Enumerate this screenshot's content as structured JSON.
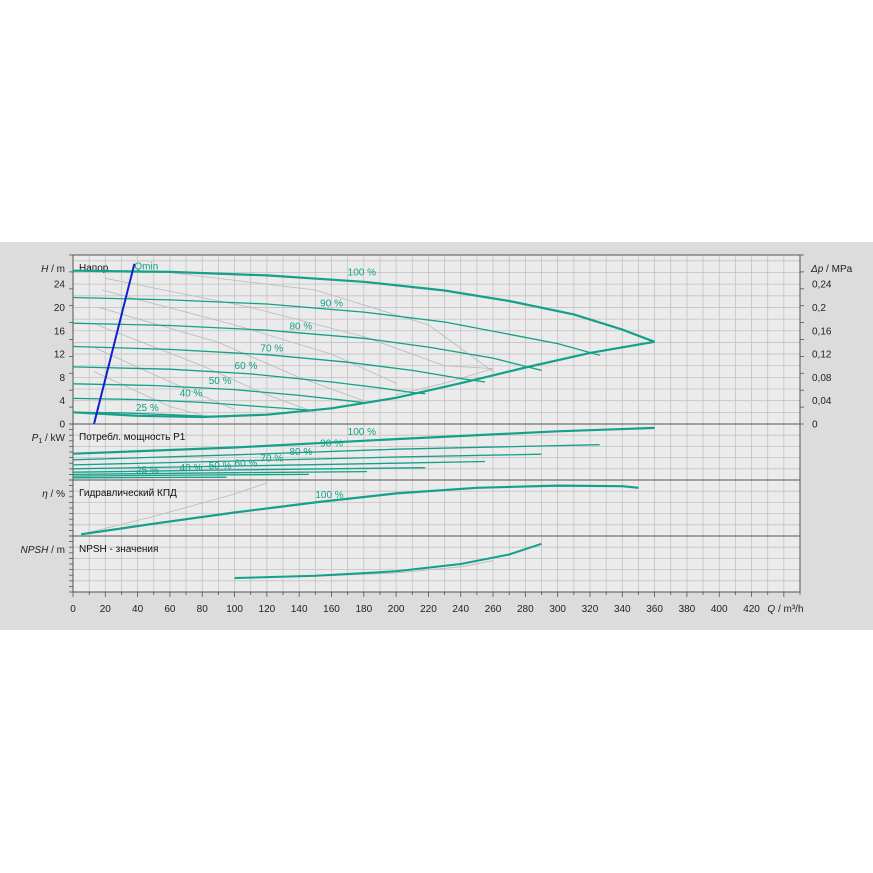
{
  "colors": {
    "panel_bg": "#dcdcdc",
    "plot_bg": "#ebebeb",
    "grid": "#c2c2c2",
    "curve": "#14a08a",
    "iso": "#b9b9b9",
    "qmin": "#1020d0",
    "text": "#222222"
  },
  "chart_data": {
    "type": "line",
    "x_axis": {
      "label_symbol": "Q",
      "label_unit": " / m³/h",
      "range": [
        0,
        450
      ],
      "ticks": [
        0,
        20,
        40,
        60,
        80,
        100,
        120,
        140,
        160,
        180,
        200,
        220,
        240,
        260,
        280,
        300,
        320,
        340,
        360,
        380,
        400,
        420
      ]
    },
    "panels": [
      {
        "id": "head",
        "title": "Напор",
        "ylabel_symbol": "H",
        "ylabel_unit": " / m",
        "y_range": [
          0,
          29
        ],
        "y_ticks": [
          {
            "v": 0,
            "t": "0"
          },
          {
            "v": 4,
            "t": "4"
          },
          {
            "v": 8,
            "t": "8"
          },
          {
            "v": 12,
            "t": "12"
          },
          {
            "v": 16,
            "t": "16"
          },
          {
            "v": 20,
            "t": "20"
          },
          {
            "v": 24,
            "t": "24"
          }
        ],
        "y2label_symbol": "Δp",
        "y2label_unit": " / MPa",
        "y2_ticks": [
          {
            "v": 0,
            "t": "0"
          },
          {
            "v": 4,
            "t": "0,04"
          },
          {
            "v": 8,
            "t": "0,08"
          },
          {
            "v": 12,
            "t": "0,12"
          },
          {
            "v": 16,
            "t": "0,16"
          },
          {
            "v": 20,
            "t": "0,2"
          },
          {
            "v": 24,
            "t": "0,24"
          }
        ],
        "series": [
          {
            "name": "100 %",
            "label_at": [
              170,
              25.5
            ],
            "points": [
              [
                0,
                26.3
              ],
              [
                60,
                26.1
              ],
              [
                120,
                25.5
              ],
              [
                180,
                24.4
              ],
              [
                230,
                22.9
              ],
              [
                270,
                21.1
              ],
              [
                310,
                18.8
              ],
              [
                340,
                16.2
              ],
              [
                360,
                14.1
              ]
            ]
          },
          {
            "name": "90 %",
            "label_at": [
              153,
              20.2
            ],
            "points": [
              [
                0,
                21.7
              ],
              [
                60,
                21.3
              ],
              [
                120,
                20.6
              ],
              [
                180,
                19.2
              ],
              [
                230,
                17.5
              ],
              [
                270,
                15.4
              ],
              [
                300,
                13.8
              ],
              [
                326,
                11.8
              ]
            ]
          },
          {
            "name": "80 %",
            "label_at": [
              134,
              16.2
            ],
            "points": [
              [
                0,
                17.3
              ],
              [
                60,
                16.9
              ],
              [
                120,
                16.1
              ],
              [
                180,
                14.7
              ],
              [
                220,
                13.2
              ],
              [
                260,
                11.3
              ],
              [
                290,
                9.2
              ]
            ]
          },
          {
            "name": "70 %",
            "label_at": [
              116,
              12.4
            ],
            "points": [
              [
                0,
                13.3
              ],
              [
                60,
                12.8
              ],
              [
                120,
                11.9
              ],
              [
                170,
                10.6
              ],
              [
                210,
                9.2
              ],
              [
                240,
                7.8
              ],
              [
                255,
                7.2
              ]
            ]
          },
          {
            "name": "60 %",
            "label_at": [
              100,
              9.4
            ],
            "points": [
              [
                0,
                9.8
              ],
              [
                60,
                9.4
              ],
              [
                110,
                8.6
              ],
              [
                160,
                7.2
              ],
              [
                190,
                6.2
              ],
              [
                210,
                5.4
              ],
              [
                218,
                5.2
              ]
            ]
          },
          {
            "name": "50 %",
            "label_at": [
              84,
              6.9
            ],
            "points": [
              [
                0,
                6.9
              ],
              [
                50,
                6.6
              ],
              [
                100,
                5.9
              ],
              [
                140,
                4.9
              ],
              [
                170,
                4.0
              ],
              [
                182,
                3.6
              ]
            ]
          },
          {
            "name": "40 %",
            "label_at": [
              66,
              4.7
            ],
            "points": [
              [
                0,
                4.4
              ],
              [
                40,
                4.2
              ],
              [
                80,
                3.7
              ],
              [
                110,
                3.1
              ],
              [
                140,
                2.5
              ],
              [
                146,
                2.4
              ]
            ]
          },
          {
            "name": "25 %",
            "label_at": [
              39,
              2.2
            ],
            "points": [
              [
                0,
                2.0
              ],
              [
                30,
                1.9
              ],
              [
                60,
                1.6
              ],
              [
                85,
                1.3
              ],
              [
                95,
                1.25
              ]
            ]
          }
        ],
        "envelope": [
          [
            0,
            2.0
          ],
          [
            40,
            1.4
          ],
          [
            80,
            1.2
          ],
          [
            120,
            1.6
          ],
          [
            160,
            2.7
          ],
          [
            200,
            4.5
          ],
          [
            240,
            7.0
          ],
          [
            280,
            9.7
          ],
          [
            320,
            12.2
          ],
          [
            360,
            14.1
          ]
        ],
        "iso_lines": [
          [
            [
              20,
              25
            ],
            [
              110,
              20
            ],
            [
              180,
              15
            ],
            [
              230,
              10
            ],
            [
              260,
              9.5
            ]
          ],
          [
            [
              18,
              23
            ],
            [
              100,
              17
            ],
            [
              160,
              12
            ],
            [
              200,
              7
            ]
          ],
          [
            [
              16,
              20
            ],
            [
              90,
              14
            ],
            [
              140,
              8
            ],
            [
              180,
              4
            ]
          ],
          [
            [
              15,
              17
            ],
            [
              80,
              10
            ],
            [
              120,
              5
            ],
            [
              150,
              2
            ]
          ],
          [
            [
              14,
              13
            ],
            [
              70,
              6
            ],
            [
              100,
              2.5
            ]
          ],
          [
            [
              13,
              9
            ],
            [
              60,
              3
            ],
            [
              80,
              1.5
            ]
          ],
          [
            [
              60,
              26
            ],
            [
              150,
              23
            ],
            [
              220,
              17
            ],
            [
              260,
              9
            ]
          ],
          [
            [
              200,
              5
            ],
            [
              230,
              7
            ],
            [
              260,
              9.5
            ]
          ]
        ],
        "qmin": {
          "name": "Qmin",
          "label_at": [
            38,
            26.5
          ],
          "points": [
            [
              13,
              0
            ],
            [
              38,
              27.5
            ]
          ]
        }
      },
      {
        "id": "power",
        "title": "Потребл. мощность P1",
        "ylabel_symbol": "P",
        "ylabel_sub": "1",
        "ylabel_unit": " / kW",
        "y_range": [
          0,
          1
        ],
        "y_ticks": [],
        "series": [
          {
            "name": "100 %",
            "label_at": [
              170,
              0.8
            ],
            "points": [
              [
                0,
                0.47
              ],
              [
                100,
                0.58
              ],
              [
                200,
                0.73
              ],
              [
                300,
                0.87
              ],
              [
                360,
                0.93
              ]
            ]
          },
          {
            "name": "90 %",
            "label_at": [
              153,
              0.6
            ],
            "points": [
              [
                0,
                0.36
              ],
              [
                100,
                0.45
              ],
              [
                200,
                0.55
              ],
              [
                326,
                0.63
              ]
            ]
          },
          {
            "name": "80 %",
            "label_at": [
              134,
              0.45
            ],
            "points": [
              [
                0,
                0.27
              ],
              [
                100,
                0.34
              ],
              [
                200,
                0.41
              ],
              [
                290,
                0.46
              ]
            ]
          },
          {
            "name": "70 %",
            "label_at": [
              116,
              0.33
            ],
            "points": [
              [
                0,
                0.2
              ],
              [
                100,
                0.25
              ],
              [
                200,
                0.3
              ],
              [
                255,
                0.33
              ]
            ]
          },
          {
            "name": "60 %",
            "label_at": [
              100,
              0.24
            ],
            "points": [
              [
                0,
                0.14
              ],
              [
                100,
                0.18
              ],
              [
                218,
                0.22
              ]
            ]
          },
          {
            "name": "50 %",
            "label_at": [
              84,
              0.2
            ],
            "points": [
              [
                0,
                0.1
              ],
              [
                100,
                0.13
              ],
              [
                182,
                0.15
              ]
            ]
          },
          {
            "name": "40 %",
            "label_at": [
              66,
              0.16
            ],
            "points": [
              [
                0,
                0.07
              ],
              [
                80,
                0.09
              ],
              [
                146,
                0.1
              ]
            ]
          },
          {
            "name": "25 %",
            "label_at": [
              39,
              0.12
            ],
            "points": [
              [
                0,
                0.04
              ],
              [
                50,
                0.045
              ],
              [
                95,
                0.05
              ]
            ]
          }
        ]
      },
      {
        "id": "efficiency",
        "title": "Гидравлический КПД",
        "ylabel_symbol": "η",
        "ylabel_unit": " / %",
        "y_range": [
          0,
          1
        ],
        "y_ticks": [],
        "series": [
          {
            "name": "100 %",
            "label_at": [
              150,
              0.68
            ],
            "points": [
              [
                5,
                0.03
              ],
              [
                50,
                0.22
              ],
              [
                100,
                0.42
              ],
              [
                150,
                0.6
              ],
              [
                200,
                0.76
              ],
              [
                250,
                0.86
              ],
              [
                300,
                0.9
              ],
              [
                340,
                0.89
              ],
              [
                350,
                0.86
              ]
            ]
          }
        ],
        "iso_lines": [
          [
            [
              5,
              0.03
            ],
            [
              50,
              0.35
            ],
            [
              100,
              0.75
            ],
            [
              120,
              0.95
            ]
          ]
        ]
      },
      {
        "id": "npsh",
        "title": "NPSH - значения",
        "ylabel_symbol": "NPSH",
        "ylabel_unit": " / m",
        "y_range": [
          0,
          1
        ],
        "y_ticks": [],
        "series": [
          {
            "name": "",
            "points": [
              [
                100,
                0.25
              ],
              [
                150,
                0.29
              ],
              [
                200,
                0.37
              ],
              [
                240,
                0.5
              ],
              [
                270,
                0.67
              ],
              [
                290,
                0.86
              ]
            ]
          }
        ],
        "iso_lines": [
          [
            [
              100,
              0.25
            ],
            [
              150,
              0.28
            ],
            [
              200,
              0.34
            ],
            [
              240,
              0.45
            ],
            [
              260,
              0.56
            ]
          ]
        ]
      }
    ]
  }
}
